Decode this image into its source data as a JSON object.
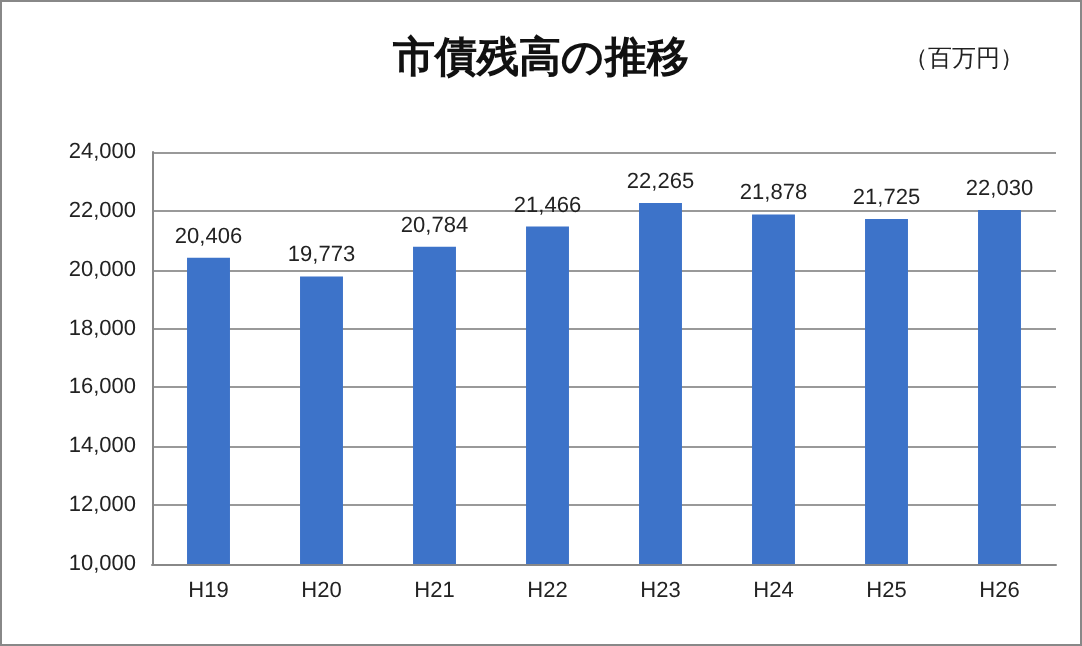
{
  "chart_data": {
    "type": "bar",
    "title": "市債残高の推移",
    "annotations": [
      "（百万円）"
    ],
    "categories": [
      "H19",
      "H20",
      "H21",
      "H22",
      "H23",
      "H24",
      "H25",
      "H26"
    ],
    "values": [
      20406,
      19773,
      20784,
      21466,
      22265,
      21878,
      21725,
      22030
    ],
    "value_labels": [
      "20,406",
      "19,773",
      "20,784",
      "21,466",
      "22,265",
      "21,878",
      "21,725",
      "22,030"
    ],
    "color": "#3d73c9",
    "ylim": [
      10000,
      24000
    ],
    "yticks": [
      {
        "value": 10000,
        "label": "10,000"
      },
      {
        "value": 12000,
        "label": "12,000"
      },
      {
        "value": 14000,
        "label": "14,000"
      },
      {
        "value": 16000,
        "label": "16,000"
      },
      {
        "value": 18000,
        "label": "18,000"
      },
      {
        "value": 20000,
        "label": "20,000"
      },
      {
        "value": 22000,
        "label": "22,000"
      },
      {
        "value": 24000,
        "label": "24,000"
      }
    ],
    "grid": "y"
  }
}
